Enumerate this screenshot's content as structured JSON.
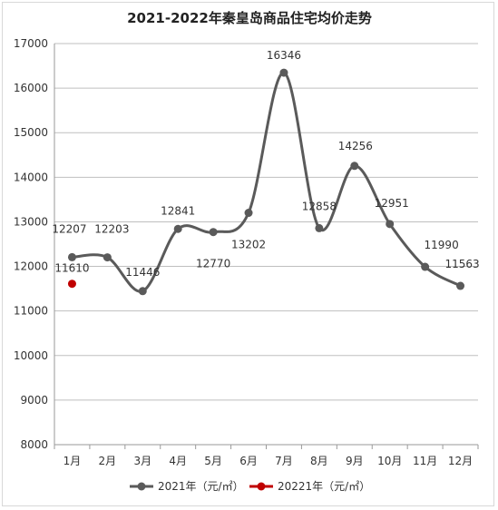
{
  "chart_data": {
    "type": "line",
    "title": "2021-2022年秦皇岛商品住宅均价走势",
    "categories": [
      "1月",
      "2月",
      "3月",
      "4月",
      "5月",
      "6月",
      "7月",
      "8月",
      "9月",
      "10月",
      "11月",
      "12月"
    ],
    "ylim": [
      8000,
      17000
    ],
    "yticks": [
      8000,
      9000,
      10000,
      11000,
      12000,
      13000,
      14000,
      15000,
      16000,
      17000
    ],
    "grid": true,
    "legend_position": "bottom",
    "series": [
      {
        "name": "2021年（元/㎡）",
        "color": "#5a5a5a",
        "values": [
          12207,
          12203,
          11446,
          12841,
          12770,
          13202,
          16346,
          12858,
          14256,
          12951,
          11990,
          11563
        ]
      },
      {
        "name": "20221年（元/㎡）",
        "color": "#c00000",
        "values": [
          11610,
          null,
          null,
          null,
          null,
          null,
          null,
          null,
          null,
          null,
          null,
          null
        ]
      }
    ]
  }
}
